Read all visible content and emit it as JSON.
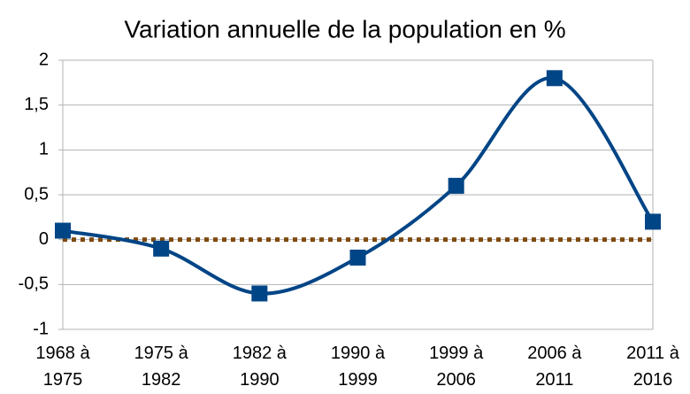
{
  "chart_data": {
    "type": "line",
    "title": "Variation annuelle de la population en %",
    "categories": [
      "1968 à 1975",
      "1975 à 1982",
      "1982 à 1990",
      "1990 à 1999",
      "1999 à 2006",
      "2006 à 2011",
      "2011 à 2016"
    ],
    "series": [
      {
        "color": "#004586",
        "values": [
          0.1,
          -0.1,
          -0.6,
          -0.2,
          0.6,
          1.8,
          0.2
        ],
        "smooth": true,
        "marker": "square"
      },
      {
        "color": "#7f4a0f",
        "values": [
          0,
          0,
          0,
          0,
          0,
          0,
          0
        ],
        "dash": "dotted"
      }
    ],
    "ylim": [
      -1,
      2
    ],
    "yticks": [
      -1,
      {
        "value": -0.5,
        "label": "-0,5"
      },
      0,
      {
        "value": 0.5,
        "label": "0,5"
      },
      1,
      {
        "value": 1.5,
        "label": "1,5"
      },
      2
    ],
    "grid": true
  }
}
